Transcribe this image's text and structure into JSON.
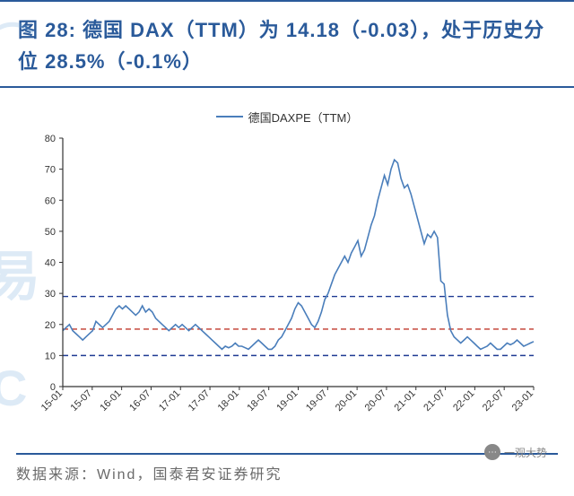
{
  "title": "图 28: 德国 DAX（TTM）为 14.18（-0.03），处于历史分位 28.5%（-0.1%）",
  "legend": {
    "label": "德国DAXPE（TTM）",
    "color": "#4a7ebb"
  },
  "footer": "数据来源：Wind，国泰君安证券研究",
  "wechat": "一观大势",
  "chart": {
    "type": "line",
    "background_color": "#ffffff",
    "axis_color": "#333333",
    "tick_fontsize": 11,
    "tick_color": "#333333",
    "ylim": [
      0,
      80
    ],
    "ytick_step": 10,
    "yticks": [
      0,
      10,
      20,
      30,
      40,
      50,
      60,
      70,
      80
    ],
    "xticks": [
      "15-01",
      "15-07",
      "16-01",
      "16-07",
      "17-01",
      "17-07",
      "18-01",
      "18-07",
      "19-01",
      "19-07",
      "20-01",
      "20-07",
      "21-01",
      "21-07",
      "22-01",
      "22-07",
      "23-01"
    ],
    "ref_lines": [
      {
        "value": 10,
        "color": "#1f3a93",
        "dash": "6,4",
        "width": 1.4
      },
      {
        "value": 18.5,
        "color": "#c0392b",
        "dash": "6,4",
        "width": 1.4
      },
      {
        "value": 29,
        "color": "#1f3a93",
        "dash": "6,4",
        "width": 1.4
      }
    ],
    "series": {
      "color": "#4a7ebb",
      "width": 1.6,
      "data": [
        18,
        19,
        20,
        18,
        17,
        16,
        15,
        16,
        17,
        18,
        21,
        20,
        19,
        20,
        21,
        23,
        25,
        26,
        25,
        26,
        25,
        24,
        23,
        24,
        26,
        24,
        25,
        24,
        22,
        21,
        20,
        19,
        18,
        19,
        20,
        19,
        20,
        19,
        18,
        19,
        20,
        19,
        18,
        17,
        16,
        15,
        14,
        13,
        12,
        13,
        12.5,
        13,
        14,
        13,
        13,
        12.5,
        12,
        13,
        14,
        15,
        14,
        13,
        12,
        12,
        13,
        15,
        16,
        18,
        20,
        22,
        25,
        27,
        26,
        24,
        22,
        20,
        19,
        21,
        24,
        28,
        30,
        33,
        36,
        38,
        40,
        42,
        40,
        43,
        45,
        47,
        42,
        44,
        48,
        52,
        55,
        60,
        64,
        68,
        65,
        70,
        73,
        72,
        67,
        64,
        65,
        62,
        58,
        54,
        50,
        46,
        49,
        48,
        50,
        48,
        34,
        33,
        23,
        18,
        16,
        15,
        14,
        15,
        16,
        15,
        14,
        13,
        12,
        12.5,
        13,
        14,
        13,
        12,
        12,
        13,
        14,
        13.5,
        14,
        15,
        14,
        13,
        13.5,
        14,
        14.5
      ]
    }
  }
}
